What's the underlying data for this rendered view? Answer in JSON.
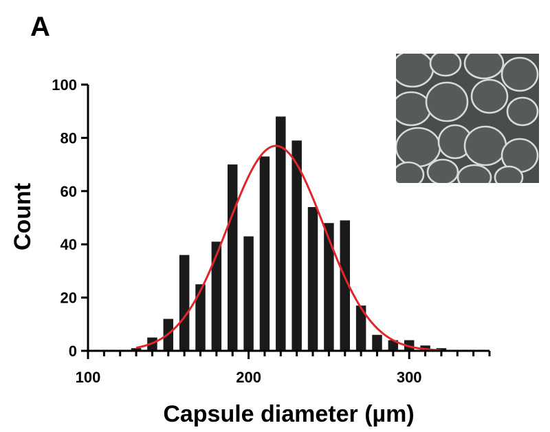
{
  "panel_label": "A",
  "colors": {
    "bars": "#1a1a1a",
    "fit_curve": "#e0262b",
    "axes": "#000000",
    "inset_background": "#4a4d4d",
    "inset_outlines": "#d8dada"
  },
  "inset": {
    "description_icon": "micrograph-inset-image"
  },
  "chart_data": {
    "type": "bar",
    "xlabel": "Capsule diameter (µm)",
    "ylabel": "Count",
    "xlim": [
      100,
      350
    ],
    "ylim": [
      0,
      100
    ],
    "x_ticks": [
      100,
      200,
      300
    ],
    "y_ticks": [
      0,
      20,
      40,
      60,
      80,
      100
    ],
    "bin_width": 10,
    "bin_centers": [
      130,
      140,
      150,
      160,
      170,
      180,
      190,
      200,
      210,
      220,
      230,
      240,
      250,
      260,
      270,
      280,
      290,
      300,
      310,
      320
    ],
    "values": [
      1,
      5,
      12,
      36,
      25,
      41,
      70,
      43,
      73,
      88,
      79,
      54,
      48,
      49,
      17,
      6,
      4,
      4,
      2,
      1
    ],
    "fit": {
      "type": "gaussian",
      "amplitude": 77,
      "mean": 217,
      "sd": 30,
      "x_range": [
        130,
        320
      ]
    },
    "grid": false,
    "legend": "none"
  }
}
